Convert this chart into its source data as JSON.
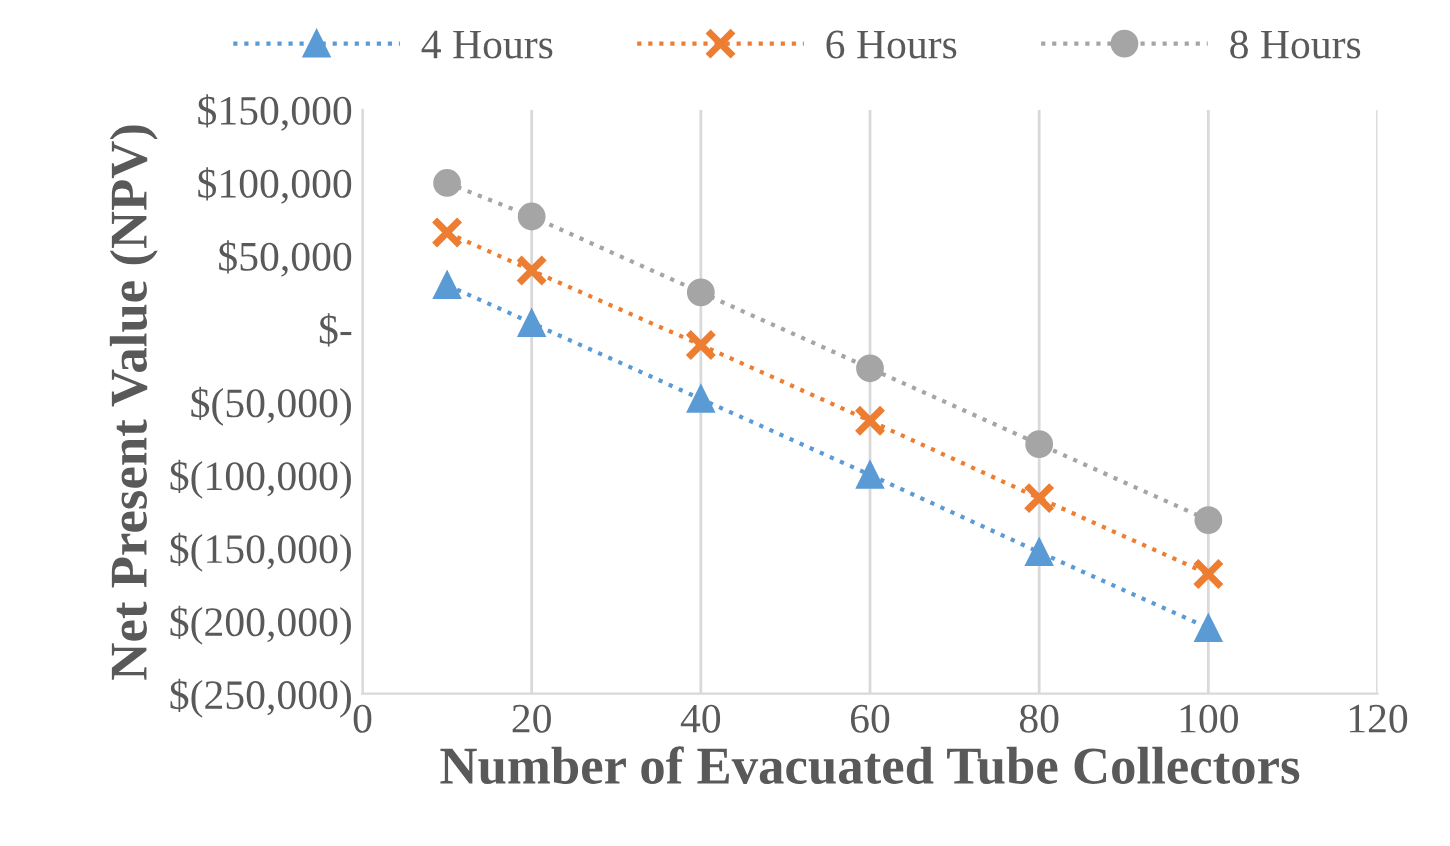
{
  "chart_data": {
    "type": "line",
    "xlabel": "Number of Evacuated Tube Collectors",
    "ylabel": "Net Present Value (NPV)",
    "x": [
      10,
      20,
      40,
      60,
      80,
      100
    ],
    "series": [
      {
        "name": "4 Hours",
        "color": "#5b9bd5",
        "marker": "triangle",
        "values": [
          30000,
          4000,
          -48000,
          -100000,
          -153000,
          -205000
        ]
      },
      {
        "name": "6 Hours",
        "color": "#ed7d31",
        "marker": "cross",
        "values": [
          66000,
          40000,
          -11000,
          -63000,
          -116000,
          -168000
        ]
      },
      {
        "name": "8 Hours",
        "color": "#a5a5a5",
        "marker": "circle",
        "values": [
          100000,
          77000,
          25000,
          -27000,
          -79000,
          -131000
        ]
      }
    ],
    "line_style": "dotted",
    "xlim": [
      0,
      120
    ],
    "xticks": [
      0,
      20,
      40,
      60,
      80,
      100,
      120
    ],
    "ylim": [
      -250000,
      150000
    ],
    "yticks": [
      {
        "value": -250000,
        "label": "$(250,000)"
      },
      {
        "value": -200000,
        "label": "$(200,000)"
      },
      {
        "value": -150000,
        "label": "$(150,000)"
      },
      {
        "value": -100000,
        "label": "$(100,000)"
      },
      {
        "value": -50000,
        "label": "$(50,000)"
      },
      {
        "value": 0,
        "label": "$-"
      },
      {
        "value": 50000,
        "label": "$50,000"
      },
      {
        "value": 100000,
        "label": "$100,000"
      },
      {
        "value": 150000,
        "label": "$150,000"
      }
    ],
    "grid": "x",
    "legend": "top"
  }
}
